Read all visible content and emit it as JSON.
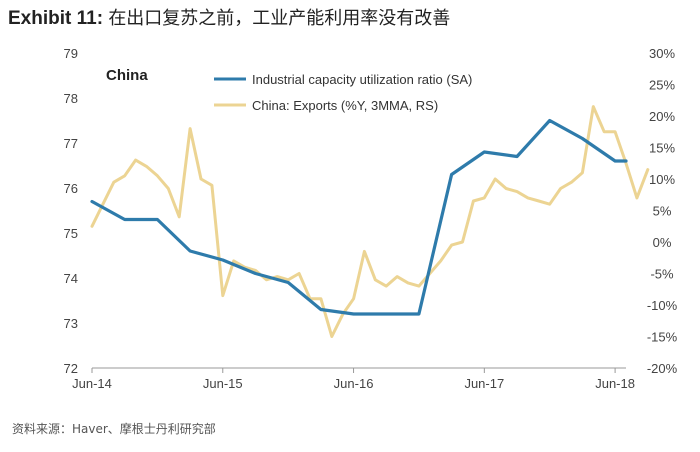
{
  "title": {
    "exhibit": "Exhibit 11:",
    "text": "在出口复苏之前，工业产能利用率没有改善"
  },
  "source": "资料来源：Haver、摩根士丹利研究部",
  "chart_data": {
    "type": "line",
    "panel_label": "China",
    "x_tick_labels": [
      "Jun-14",
      "Jun-15",
      "Jun-16",
      "Jun-17",
      "Jun-18"
    ],
    "x_range": [
      "2014-06",
      "2018-07"
    ],
    "y_left": {
      "range": [
        72,
        79
      ],
      "ticks": [
        72,
        73,
        74,
        75,
        76,
        77,
        78,
        79
      ]
    },
    "y_right": {
      "range": [
        -20,
        30
      ],
      "ticks": [
        "-20%",
        "-15%",
        "-10%",
        "-5%",
        "0%",
        "5%",
        "10%",
        "15%",
        "20%",
        "25%",
        "30%"
      ],
      "values": [
        -20,
        -15,
        -10,
        -5,
        0,
        5,
        10,
        15,
        20,
        25,
        30
      ]
    },
    "grid": false,
    "legend_position": "top-center",
    "series": [
      {
        "name": "Industrial capacity utilization ratio (SA)",
        "axis": "left",
        "color": "#2e7bab",
        "points": [
          [
            "2014-06",
            75.7
          ],
          [
            "2014-09",
            75.3
          ],
          [
            "2014-12",
            75.3
          ],
          [
            "2015-03",
            74.6
          ],
          [
            "2015-06",
            74.4
          ],
          [
            "2015-09",
            74.1
          ],
          [
            "2015-12",
            73.9
          ],
          [
            "2016-03",
            73.3
          ],
          [
            "2016-06",
            73.2
          ],
          [
            "2016-09",
            73.2
          ],
          [
            "2016-12",
            73.2
          ],
          [
            "2017-03",
            76.3
          ],
          [
            "2017-06",
            76.8
          ],
          [
            "2017-09",
            76.7
          ],
          [
            "2017-12",
            77.5
          ],
          [
            "2018-03",
            77.1
          ],
          [
            "2018-06",
            76.6
          ],
          [
            "2018-07",
            76.6
          ]
        ]
      },
      {
        "name": "China: Exports (%Y, 3MMA, RS)",
        "axis": "right",
        "color": "#ecd493",
        "points": [
          [
            "2014-06",
            2.5
          ],
          [
            "2014-07",
            6
          ],
          [
            "2014-08",
            9.5
          ],
          [
            "2014-09",
            10.5
          ],
          [
            "2014-10",
            13
          ],
          [
            "2014-11",
            12
          ],
          [
            "2014-12",
            10.5
          ],
          [
            "2015-01",
            8.5
          ],
          [
            "2015-02",
            4
          ],
          [
            "2015-03",
            18
          ],
          [
            "2015-04",
            10
          ],
          [
            "2015-05",
            9
          ],
          [
            "2015-06",
            -8.5
          ],
          [
            "2015-07",
            -3
          ],
          [
            "2015-08",
            -4
          ],
          [
            "2015-09",
            -4.5
          ],
          [
            "2015-10",
            -6
          ],
          [
            "2015-11",
            -5.5
          ],
          [
            "2015-12",
            -6
          ],
          [
            "2016-01",
            -5
          ],
          [
            "2016-02",
            -9
          ],
          [
            "2016-03",
            -9
          ],
          [
            "2016-04",
            -15
          ],
          [
            "2016-05",
            -11.5
          ],
          [
            "2016-06",
            -9
          ],
          [
            "2016-07",
            -1.5
          ],
          [
            "2016-08",
            -6
          ],
          [
            "2016-09",
            -7
          ],
          [
            "2016-10",
            -5.5
          ],
          [
            "2016-11",
            -6.5
          ],
          [
            "2016-12",
            -7
          ],
          [
            "2017-01",
            -5
          ],
          [
            "2017-02",
            -3
          ],
          [
            "2017-03",
            -0.5
          ],
          [
            "2017-04",
            0
          ],
          [
            "2017-05",
            6.5
          ],
          [
            "2017-06",
            7
          ],
          [
            "2017-07",
            10
          ],
          [
            "2017-08",
            8.5
          ],
          [
            "2017-09",
            8
          ],
          [
            "2017-10",
            7
          ],
          [
            "2017-11",
            6.5
          ],
          [
            "2017-12",
            6
          ],
          [
            "2018-01",
            8.5
          ],
          [
            "2018-02",
            9.5
          ],
          [
            "2018-03",
            11
          ],
          [
            "2018-04",
            21.5
          ],
          [
            "2018-05",
            17.5
          ],
          [
            "2018-06",
            17.5
          ],
          [
            "2018-07",
            12.5
          ],
          [
            "2018-08",
            7
          ],
          [
            "2018-09",
            11.5
          ]
        ]
      }
    ]
  }
}
